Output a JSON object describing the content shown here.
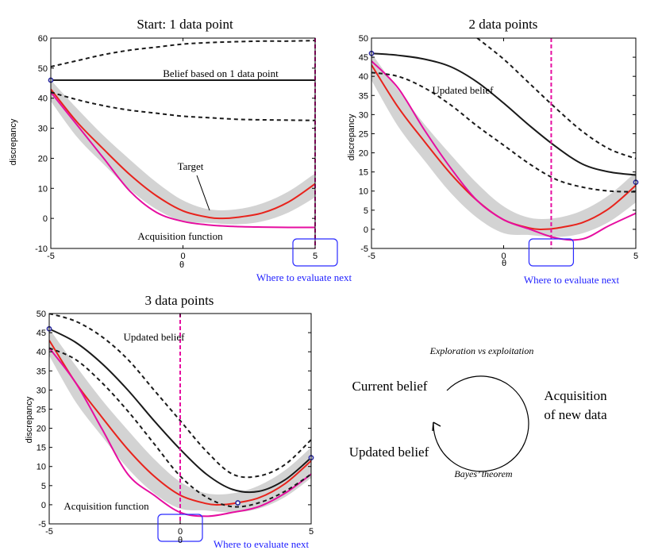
{
  "chart_data": [
    {
      "type": "line",
      "title": "Start: 1 data point",
      "xlabel": "θ",
      "ylabel": "discrepancy",
      "xlim": [
        -5,
        5
      ],
      "ylim": [
        -10,
        60
      ],
      "xticks": [
        -5,
        0,
        5
      ],
      "yticks": [
        -10,
        0,
        10,
        20,
        30,
        40,
        50,
        60
      ],
      "series": [
        {
          "name": "Target",
          "role": "band",
          "x": [
            -5,
            -4,
            -3,
            -2,
            -1,
            0,
            1,
            2,
            3,
            4,
            5
          ],
          "upper": [
            46,
            36.5,
            27.5,
            19.5,
            12,
            6,
            3,
            3,
            5,
            9,
            15
          ],
          "lower": [
            39,
            27,
            18,
            9.5,
            3,
            -1,
            -1.5,
            -2,
            -1,
            2,
            7
          ]
        },
        {
          "name": "Target",
          "role": "target",
          "x": [
            -5,
            -4,
            -3,
            -2,
            -1,
            0,
            1,
            1.5,
            2,
            3,
            4,
            5
          ],
          "y": [
            43,
            32,
            23,
            14.5,
            7.5,
            2.5,
            0.3,
            0,
            0.3,
            1.8,
            5.5,
            11.5
          ]
        },
        {
          "name": "Acquisition function",
          "role": "acquisition",
          "x": [
            -5,
            -4,
            -3,
            -2,
            -1,
            0,
            1,
            2,
            3,
            4,
            5
          ],
          "y": [
            42,
            31,
            20,
            9,
            2,
            -1,
            -2.2,
            -2.7,
            -2.9,
            -3,
            -3
          ]
        },
        {
          "name": "Belief based on 1 data point",
          "role": "mean",
          "x": [
            -5,
            5
          ],
          "y": [
            46,
            46
          ]
        },
        {
          "role": "upper",
          "x": [
            -5,
            -4,
            -3,
            -2,
            -1,
            0,
            1,
            2,
            3,
            4,
            5
          ],
          "y": [
            50.5,
            52.5,
            54.5,
            56,
            57,
            58,
            58.5,
            58.8,
            59,
            59,
            59.2
          ]
        },
        {
          "role": "lower",
          "x": [
            -5,
            -4,
            -3,
            -2,
            -1,
            0,
            1,
            2,
            3,
            4,
            5
          ],
          "y": [
            42,
            39.5,
            37.5,
            36,
            35,
            34,
            33.5,
            33,
            32.8,
            32.7,
            32.6
          ]
        }
      ],
      "observations": [
        {
          "x": -5,
          "y": 46
        }
      ],
      "next_x": 5,
      "next_label": "Where to evaluate next",
      "annotations": [
        "Belief based on 1 data point",
        "Target",
        "Acquisition function"
      ]
    },
    {
      "type": "line",
      "title": "2 data points",
      "xlabel": "θ",
      "ylabel": "discrepancy",
      "xlim": [
        -5,
        5
      ],
      "ylim": [
        -5,
        50
      ],
      "xticks": [
        -5,
        0,
        5
      ],
      "yticks": [
        -5,
        0,
        5,
        10,
        15,
        20,
        25,
        30,
        35,
        40,
        45,
        50
      ],
      "series": [
        {
          "role": "band",
          "x": [
            -5,
            -4,
            -3,
            -2,
            -1,
            0,
            1,
            2,
            3,
            4,
            5
          ],
          "upper": [
            46,
            36.5,
            27.5,
            19.5,
            12,
            6,
            3,
            3,
            5,
            9,
            15
          ],
          "lower": [
            39,
            27,
            18,
            9.5,
            3,
            -1,
            -1.5,
            -2,
            -1,
            2,
            7
          ]
        },
        {
          "role": "target",
          "x": [
            -5,
            -4,
            -3,
            -2,
            -1,
            0,
            1,
            1.5,
            2,
            3,
            4,
            5
          ],
          "y": [
            43,
            32,
            23,
            14.5,
            7.5,
            2.5,
            0.3,
            0,
            0.3,
            1.8,
            5.5,
            11.5
          ]
        },
        {
          "role": "acquisition",
          "x": [
            -5,
            -4,
            -3,
            -2,
            -1,
            0,
            1,
            2,
            3,
            4,
            5
          ],
          "y": [
            44,
            37,
            26,
            16,
            7.5,
            2.5,
            0,
            -2.3,
            -2.5,
            1,
            4.2
          ]
        },
        {
          "name": "Updated belief",
          "role": "mean",
          "x": [
            -5,
            -4,
            -3,
            -2,
            -1,
            0,
            1,
            2,
            3,
            4,
            5
          ],
          "y": [
            46,
            45.5,
            44.5,
            42.5,
            38.5,
            33,
            27,
            21.5,
            17,
            15,
            14.2
          ]
        },
        {
          "role": "upper",
          "x": [
            -1,
            0,
            1,
            2,
            3,
            4,
            5
          ],
          "y": [
            50,
            44.5,
            38,
            31.5,
            25.5,
            21,
            18.5
          ]
        },
        {
          "role": "lower",
          "x": [
            -5,
            -4,
            -3,
            -2,
            -1,
            0,
            1,
            2,
            3,
            4,
            5
          ],
          "y": [
            41,
            40,
            37,
            32.5,
            27,
            22,
            17,
            13,
            11,
            10,
            9.8
          ]
        }
      ],
      "observations": [
        {
          "x": -5,
          "y": 46
        },
        {
          "x": 5,
          "y": 12.3
        }
      ],
      "next_x": 1.8,
      "next_label": "Where to evaluate next",
      "annotations": [
        "Updated belief"
      ]
    },
    {
      "type": "line",
      "title": "3 data points",
      "xlabel": "θ",
      "ylabel": "discrepancy",
      "xlim": [
        -5,
        5
      ],
      "ylim": [
        -5,
        50
      ],
      "xticks": [
        -5,
        0,
        5
      ],
      "yticks": [
        -5,
        0,
        5,
        10,
        15,
        20,
        25,
        30,
        35,
        40,
        45,
        50
      ],
      "series": [
        {
          "role": "band",
          "x": [
            -5,
            -4,
            -3,
            -2,
            -1,
            0,
            1,
            2,
            3,
            4,
            5
          ],
          "upper": [
            46,
            36.5,
            27.5,
            19.5,
            12,
            6,
            3,
            3,
            5,
            9,
            15
          ],
          "lower": [
            39,
            27,
            18,
            9.5,
            3,
            -1,
            -1.5,
            -2,
            -1,
            2,
            7
          ]
        },
        {
          "role": "target",
          "x": [
            -5,
            -4,
            -3,
            -2,
            -1,
            0,
            1,
            1.5,
            2,
            3,
            4,
            5
          ],
          "y": [
            43,
            32,
            23,
            14.5,
            7.5,
            2.5,
            0.3,
            0,
            0.3,
            1.8,
            5.5,
            11.5
          ]
        },
        {
          "role": "acquisition",
          "x": [
            -5,
            -4,
            -3,
            -2,
            -1,
            0,
            1,
            2,
            3,
            4,
            5
          ],
          "y": [
            41,
            32,
            20,
            8,
            2.5,
            -2,
            -3,
            -2,
            -0.5,
            3,
            8
          ]
        },
        {
          "name": "Updated belief",
          "role": "mean",
          "x": [
            -5,
            -4,
            -3,
            -2,
            -1,
            0,
            1,
            2,
            3,
            4,
            5
          ],
          "y": [
            46,
            42.5,
            37,
            30,
            22,
            14.5,
            8,
            4,
            3.5,
            6.5,
            12.3
          ]
        },
        {
          "role": "upper",
          "x": [
            -5,
            -4,
            -3,
            -2,
            -1,
            0,
            1,
            2,
            3,
            4,
            5
          ],
          "y": [
            50,
            48,
            44,
            38,
            30,
            22,
            14,
            8,
            7.5,
            10.5,
            17
          ]
        },
        {
          "role": "lower",
          "x": [
            -5,
            -4,
            -3,
            -2,
            -1,
            0,
            1,
            2,
            3,
            4,
            5
          ],
          "y": [
            41,
            38,
            32,
            24.5,
            16,
            7.5,
            2,
            -0.5,
            0.5,
            3.5,
            8
          ]
        }
      ],
      "observations": [
        {
          "x": -5,
          "y": 46
        },
        {
          "x": 2.2,
          "y": 0.5
        },
        {
          "x": 5,
          "y": 12.3
        }
      ],
      "next_x": 0,
      "next_label": "Where to evaluate next",
      "annotations": [
        "Updated belief",
        "Acquisition function"
      ]
    }
  ],
  "cycle": {
    "current": "Current belief",
    "acquisition_line1": "Acquisition",
    "acquisition_line2": "of new data",
    "updated": "Updated belief",
    "top_caption": "Exploration vs exploitation",
    "bottom_caption": "Bayes’ theorem"
  },
  "colors": {
    "target": "#e8231c",
    "acquisition": "#e60ea0",
    "belief": "#1a1a1a",
    "band": "#d3d3d3",
    "next_marker": "#e60ea0",
    "next_box": "#2a2aff",
    "observation": "#2a2aa0"
  }
}
